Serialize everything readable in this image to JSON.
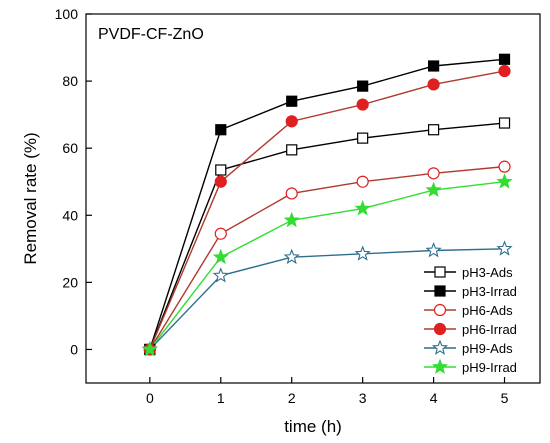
{
  "chart_data": {
    "type": "line",
    "title": "PVDF-CF-ZnO",
    "xlabel": "time  (h)",
    "ylabel": "Removal rate  (%)",
    "xlim": [
      -0.9,
      5.5
    ],
    "ylim": [
      -10,
      100
    ],
    "xticks": [
      0,
      1,
      2,
      3,
      4,
      5
    ],
    "yticks": [
      0,
      20,
      40,
      60,
      80,
      100
    ],
    "grid": false,
    "legend_position": "bottom-right",
    "x": [
      0,
      1,
      2,
      3,
      4,
      5
    ],
    "series": [
      {
        "name": "pH3-Ads",
        "values": [
          0,
          53.5,
          59.5,
          63,
          65.5,
          67.5
        ],
        "line_color": "#000000",
        "marker": "square",
        "marker_fill": "#ffffff",
        "marker_stroke": "#000000"
      },
      {
        "name": "pH3-Irrad",
        "values": [
          0,
          65.5,
          74,
          78.5,
          84.5,
          86.5
        ],
        "line_color": "#000000",
        "marker": "square",
        "marker_fill": "#000000",
        "marker_stroke": "#000000"
      },
      {
        "name": "pH6-Ads",
        "values": [
          0,
          34.5,
          46.5,
          50,
          52.5,
          54.5
        ],
        "line_color": "#b03a2e",
        "marker": "circle",
        "marker_fill": "#ffffff",
        "marker_stroke": "#e02020"
      },
      {
        "name": "pH6-Irrad",
        "values": [
          0,
          50,
          68,
          73,
          79,
          83
        ],
        "line_color": "#b03a2e",
        "marker": "circle",
        "marker_fill": "#e02020",
        "marker_stroke": "#e02020"
      },
      {
        "name": "pH9-Ads",
        "values": [
          0,
          22,
          27.5,
          28.5,
          29.5,
          30
        ],
        "line_color": "#2e6e8e",
        "marker": "star",
        "marker_fill": "#ffffff",
        "marker_stroke": "#2e6e8e"
      },
      {
        "name": "pH9-Irrad",
        "values": [
          0,
          27.5,
          38.5,
          42,
          47.5,
          50
        ],
        "line_color": "#33dd33",
        "marker": "star",
        "marker_fill": "#33dd33",
        "marker_stroke": "#33dd33"
      }
    ]
  }
}
